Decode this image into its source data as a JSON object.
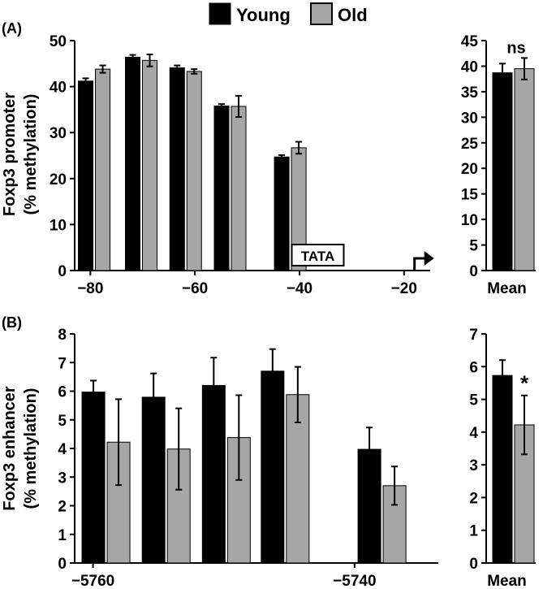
{
  "legend": {
    "placement": "top-center",
    "items": [
      {
        "label": "Young",
        "color": "#000000"
      },
      {
        "label": "Old",
        "color": "#a6a6a6"
      }
    ]
  },
  "colors": {
    "young": "#000000",
    "old": "#a6a6a6",
    "axis": "#000000"
  },
  "chart_data": [
    {
      "id": "A-promoter",
      "panel_label": "(A)",
      "type": "bar",
      "ylabel": "Foxp3 promoter\n(% methylation)",
      "ylim": [
        0,
        50
      ],
      "yticks": [
        0,
        10,
        20,
        30,
        40,
        50
      ],
      "xlim": [
        -83,
        -15
      ],
      "xticks": [
        -80,
        -60,
        -40,
        -20
      ],
      "xtick_labels": [
        "−80",
        "−60",
        "−40",
        "−20"
      ],
      "groups": [
        {
          "x": -79.5,
          "young": 41.2,
          "young_err": 0.6,
          "old": 43.8,
          "old_err": 0.8
        },
        {
          "x": -70.5,
          "young": 46.4,
          "young_err": 0.5,
          "old": 45.7,
          "old_err": 1.3
        },
        {
          "x": -62.0,
          "young": 44.1,
          "young_err": 0.5,
          "old": 43.3,
          "old_err": 0.5
        },
        {
          "x": -53.5,
          "young": 35.8,
          "young_err": 0.4,
          "old": 35.7,
          "old_err": 2.3
        },
        {
          "x": -42.0,
          "young": 24.7,
          "young_err": 0.4,
          "old": 26.7,
          "old_err": 1.3
        }
      ],
      "annotations": [
        {
          "text": "TATA",
          "x": -36.5,
          "boxed": true
        }
      ],
      "arrow": {
        "x": -18,
        "direction": "right"
      },
      "grid": false
    },
    {
      "id": "A-mean",
      "type": "bar",
      "ylim": [
        0,
        45
      ],
      "yticks": [
        0,
        5,
        10,
        15,
        20,
        25,
        30,
        35,
        40,
        45
      ],
      "categories": [
        "Mean"
      ],
      "series": [
        {
          "name": "Young",
          "values": [
            38.7
          ],
          "errors": [
            1.8
          ]
        },
        {
          "name": "Old",
          "values": [
            39.5
          ],
          "errors": [
            2.1
          ]
        }
      ],
      "significance": "ns",
      "grid": false
    },
    {
      "id": "B-enhancer",
      "panel_label": "(B)",
      "type": "bar",
      "ylabel": "Foxp3 enhancer\n(% methylation)",
      "ylim": [
        0,
        8
      ],
      "yticks": [
        0,
        1,
        2,
        3,
        4,
        5,
        6,
        7,
        8
      ],
      "xlim": [
        -5761.4,
        -5733.6
      ],
      "xticks": [
        -5760,
        -5740
      ],
      "xtick_labels": [
        "−5760",
        "−5740"
      ],
      "groups": [
        {
          "x": -5759.1,
          "young": 5.97,
          "young_err": 0.4,
          "old": 4.22,
          "old_err": 1.5
        },
        {
          "x": -5754.5,
          "young": 5.79,
          "young_err": 0.83,
          "old": 3.98,
          "old_err": 1.42
        },
        {
          "x": -5749.9,
          "young": 6.2,
          "young_err": 0.97,
          "old": 4.38,
          "old_err": 1.48
        },
        {
          "x": -5745.4,
          "young": 6.7,
          "young_err": 0.77,
          "old": 5.88,
          "old_err": 0.97
        },
        {
          "x": -5738.0,
          "young": 3.97,
          "young_err": 0.76,
          "old": 2.7,
          "old_err": 0.67
        }
      ],
      "grid": false
    },
    {
      "id": "B-mean",
      "type": "bar",
      "ylim": [
        0,
        7
      ],
      "yticks": [
        0,
        1,
        2,
        3,
        4,
        5,
        6,
        7
      ],
      "categories": [
        "Mean"
      ],
      "series": [
        {
          "name": "Young",
          "values": [
            5.73
          ],
          "errors": [
            0.47
          ]
        },
        {
          "name": "Old",
          "values": [
            4.22
          ],
          "errors": [
            0.9
          ]
        }
      ],
      "significance": "*",
      "grid": false
    }
  ]
}
